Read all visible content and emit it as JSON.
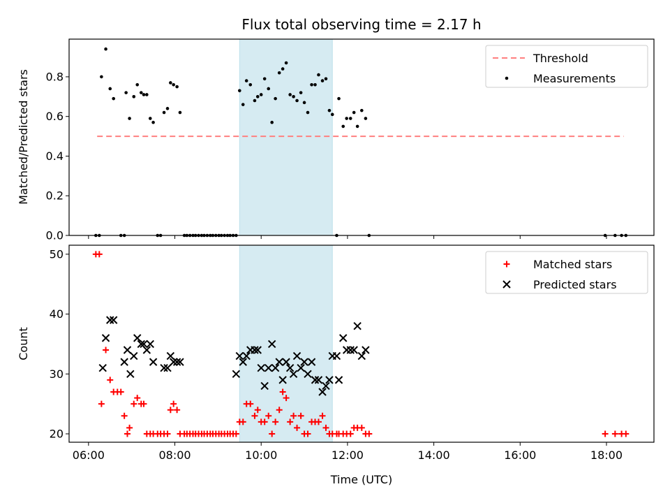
{
  "chart_data": [
    {
      "type": "scatter",
      "title": "Flux total observing time = 2.17 h",
      "xlabel": "",
      "ylabel": "Matched/Predicted stars",
      "xlim": [
        5.55,
        19.1
      ],
      "ylim": [
        0,
        0.99
      ],
      "yticks": [
        0.0,
        0.2,
        0.4,
        0.6,
        0.8
      ],
      "ytick_labels": [
        "0.0",
        "0.2",
        "0.4",
        "0.6",
        "0.8"
      ],
      "shaded_span": {
        "x0": 9.5,
        "x1": 11.65,
        "color": "#add8e6"
      },
      "threshold": {
        "name": "Threshold",
        "value": 0.5,
        "x0": 6.2,
        "x1": 18.4,
        "color": "#ff7f7f"
      },
      "legend": {
        "position": "top-right",
        "entries": [
          "Threshold",
          "Measurements"
        ]
      },
      "series": [
        {
          "name": "Measurements",
          "color": "#000000",
          "marker": "dot",
          "x": [
            6.17,
            6.25,
            6.3,
            6.4,
            6.5,
            6.58,
            6.75,
            6.83,
            6.87,
            6.95,
            7.05,
            7.13,
            7.22,
            7.28,
            7.35,
            7.43,
            7.5,
            7.6,
            7.67,
            7.75,
            7.83,
            7.9,
            7.97,
            8.05,
            8.12,
            8.22,
            8.28,
            8.35,
            8.42,
            8.48,
            8.55,
            8.62,
            8.68,
            8.75,
            8.82,
            8.88,
            8.95,
            9.02,
            9.08,
            9.15,
            9.22,
            9.28,
            9.35,
            9.42,
            9.5,
            9.58,
            9.66,
            9.75,
            9.85,
            9.92,
            10.0,
            10.08,
            10.17,
            10.25,
            10.33,
            10.42,
            10.5,
            10.58,
            10.67,
            10.75,
            10.83,
            10.92,
            11.0,
            11.08,
            11.17,
            11.25,
            11.33,
            11.42,
            11.5,
            11.58,
            11.65,
            11.75,
            11.8,
            11.9,
            11.98,
            12.07,
            12.15,
            12.23,
            12.33,
            12.42,
            12.5,
            17.97,
            18.2,
            18.35,
            18.45
          ],
          "y": [
            0,
            0,
            0.8,
            0.94,
            0.74,
            0.69,
            0,
            0,
            0.72,
            0.59,
            0.7,
            0.76,
            0.72,
            0.71,
            0.71,
            0.59,
            0.57,
            0,
            0,
            0.62,
            0.64,
            0.77,
            0.76,
            0.75,
            0.62,
            0,
            0,
            0,
            0,
            0,
            0,
            0,
            0,
            0,
            0,
            0,
            0,
            0,
            0,
            0,
            0,
            0,
            0,
            0,
            0.73,
            0.66,
            0.78,
            0.76,
            0.68,
            0.7,
            0.71,
            0.79,
            0.74,
            0.57,
            0.69,
            0.82,
            0.84,
            0.87,
            0.71,
            0.7,
            0.68,
            0.72,
            0.67,
            0.62,
            0.76,
            0.76,
            0.81,
            0.78,
            0.79,
            0.63,
            0.61,
            0,
            0.69,
            0.55,
            0.59,
            0.59,
            0.62,
            0.55,
            0.63,
            0.59,
            0,
            0,
            0,
            0,
            0
          ]
        }
      ]
    },
    {
      "type": "scatter",
      "title": "",
      "xlabel": "Time (UTC)",
      "ylabel": "Count",
      "xlim": [
        5.55,
        19.1
      ],
      "ylim": [
        18.6,
        51.5
      ],
      "yticks": [
        20,
        30,
        40,
        50
      ],
      "ytick_labels": [
        "20",
        "30",
        "40",
        "50"
      ],
      "xticks": [
        6,
        8,
        10,
        12,
        14,
        16,
        18
      ],
      "xtick_labels": [
        "06:00",
        "08:00",
        "10:00",
        "12:00",
        "14:00",
        "16:00",
        "18:00"
      ],
      "shaded_span": {
        "x0": 9.5,
        "x1": 11.65,
        "color": "#add8e6"
      },
      "legend": {
        "position": "top-right",
        "entries": [
          "Matched stars",
          "Predicted stars"
        ]
      },
      "series": [
        {
          "name": "Matched stars",
          "color": "#ff0000",
          "marker": "plus",
          "x": [
            6.17,
            6.25,
            6.3,
            6.4,
            6.5,
            6.58,
            6.67,
            6.75,
            6.83,
            6.9,
            6.95,
            7.05,
            7.13,
            7.22,
            7.28,
            7.35,
            7.43,
            7.5,
            7.6,
            7.67,
            7.75,
            7.83,
            7.9,
            7.97,
            8.05,
            8.12,
            8.22,
            8.28,
            8.35,
            8.42,
            8.48,
            8.55,
            8.62,
            8.68,
            8.75,
            8.82,
            8.88,
            8.95,
            9.02,
            9.08,
            9.15,
            9.22,
            9.28,
            9.35,
            9.42,
            9.5,
            9.58,
            9.66,
            9.75,
            9.85,
            9.92,
            10.0,
            10.08,
            10.17,
            10.25,
            10.33,
            10.42,
            10.5,
            10.58,
            10.67,
            10.75,
            10.83,
            10.92,
            11.0,
            11.08,
            11.17,
            11.25,
            11.33,
            11.42,
            11.5,
            11.58,
            11.65,
            11.75,
            11.8,
            11.9,
            11.98,
            12.07,
            12.15,
            12.23,
            12.33,
            12.42,
            12.5,
            17.97,
            18.2,
            18.35,
            18.45
          ],
          "y": [
            50,
            50,
            25,
            34,
            29,
            27,
            27,
            27,
            23,
            20,
            21,
            25,
            26,
            25,
            25,
            20,
            20,
            20,
            20,
            20,
            20,
            20,
            24,
            25,
            24,
            20,
            20,
            20,
            20,
            20,
            20,
            20,
            20,
            20,
            20,
            20,
            20,
            20,
            20,
            20,
            20,
            20,
            20,
            20,
            20,
            22,
            22,
            25,
            25,
            23,
            24,
            22,
            22,
            23,
            20,
            22,
            24,
            27,
            26,
            22,
            23,
            21,
            23,
            20,
            20,
            22,
            22,
            22,
            23,
            21,
            20,
            20,
            20,
            20,
            20,
            20,
            20,
            21,
            21,
            21,
            20,
            20,
            20,
            20,
            20,
            20
          ]
        },
        {
          "name": "Predicted stars",
          "color": "#000000",
          "marker": "x",
          "x": [
            6.33,
            6.4,
            6.5,
            6.58,
            6.83,
            6.9,
            6.97,
            7.05,
            7.13,
            7.22,
            7.28,
            7.35,
            7.43,
            7.5,
            7.75,
            7.83,
            7.9,
            7.97,
            8.05,
            8.12,
            9.42,
            9.5,
            9.58,
            9.66,
            9.75,
            9.85,
            9.92,
            10.0,
            10.08,
            10.17,
            10.25,
            10.33,
            10.42,
            10.5,
            10.58,
            10.67,
            10.75,
            10.83,
            10.92,
            11.0,
            11.08,
            11.17,
            11.25,
            11.33,
            11.42,
            11.5,
            11.58,
            11.65,
            11.75,
            11.8,
            11.9,
            11.98,
            12.07,
            12.15,
            12.23,
            12.33,
            12.42
          ],
          "y": [
            31,
            36,
            39,
            39,
            32,
            34,
            30,
            33,
            36,
            35,
            35,
            34,
            35,
            32,
            31,
            31,
            33,
            32,
            32,
            32,
            30,
            33,
            32,
            33,
            34,
            34,
            34,
            31,
            28,
            31,
            35,
            31,
            32,
            29,
            32,
            31,
            30,
            33,
            31,
            32,
            30,
            32,
            29,
            29,
            27,
            28,
            29,
            33,
            33,
            29,
            36,
            34,
            34,
            34,
            38,
            33,
            34
          ]
        }
      ]
    }
  ]
}
